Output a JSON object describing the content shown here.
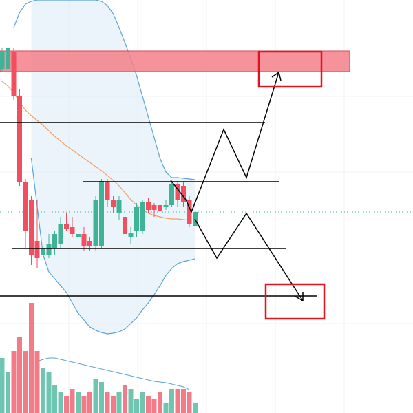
{
  "chart_data": {
    "type": "candlestick",
    "ylim": [
      0,
      600
    ],
    "volume_ylim": [
      0,
      600
    ],
    "up_color": "#3fb396",
    "down_color": "#ef4f5f",
    "open": [
      500,
      500,
      525,
      460,
      335,
      310,
      250,
      230,
      230,
      240,
      245,
      275,
      270,
      255,
      260,
      250,
      243,
      243,
      335,
      310,
      290,
      285,
      255,
      265,
      265,
      307,
      302,
      302,
      300,
      302,
      332,
      330,
      310,
      272
    ],
    "high": [
      530,
      535,
      530,
      470,
      340,
      315,
      310,
      285,
      260,
      265,
      285,
      290,
      285,
      275,
      270,
      255,
      315,
      340,
      340,
      315,
      315,
      290,
      270,
      305,
      310,
      312,
      305,
      306,
      310,
      335,
      337,
      335,
      315,
      295
    ],
    "low": [
      495,
      495,
      455,
      330,
      240,
      215,
      210,
      200,
      225,
      230,
      240,
      265,
      255,
      250,
      235,
      235,
      235,
      240,
      300,
      290,
      280,
      240,
      245,
      255,
      260,
      290,
      285,
      280,
      295,
      300,
      300,
      300,
      270,
      268
    ],
    "close": [
      525,
      530,
      460,
      335,
      265,
      230,
      225,
      240,
      245,
      260,
      275,
      268,
      260,
      260,
      243,
      243,
      310,
      337,
      310,
      300,
      310,
      260,
      262,
      300,
      307,
      295,
      295,
      294,
      302,
      332,
      310,
      307,
      275,
      292
    ],
    "volume": [
      80,
      60,
      90,
      110,
      90,
      160,
      90,
      65,
      60,
      40,
      30,
      25,
      35,
      30,
      25,
      30,
      50,
      45,
      30,
      25,
      30,
      40,
      35,
      20,
      30,
      25,
      20,
      30,
      15,
      35,
      35,
      35,
      30,
      15
    ],
    "volume_ma": [
      null,
      null,
      null,
      null,
      null,
      null,
      75,
      78,
      80,
      80,
      78,
      76,
      74,
      72,
      70,
      68,
      66,
      64,
      62,
      60,
      58,
      56,
      54,
      52,
      50,
      48,
      46,
      45,
      44,
      42,
      40,
      38,
      34,
      null
    ],
    "lines": [
      {
        "name": "upper",
        "color": "#5aa3d6",
        "values": [
          null,
          null,
          560,
          582,
          594,
          598,
          600,
          600,
          600,
          600,
          600,
          600,
          600,
          600,
          600,
          600,
          600,
          598,
          592,
          580,
          560,
          538,
          515,
          490,
          460,
          430,
          400,
          370,
          350,
          342,
          342,
          341,
          340,
          339
        ]
      },
      {
        "name": "lower",
        "color": "#5aa3d6",
        "values": [
          null,
          null,
          null,
          null,
          null,
          370,
          300,
          230,
          205,
          195,
          185,
          175,
          160,
          145,
          135,
          125,
          120,
          117,
          115,
          116,
          118,
          122,
          130,
          138,
          150,
          160,
          172,
          185,
          200,
          210,
          217,
          220,
          222,
          224
        ]
      },
      {
        "name": "basis",
        "color": "#f0a066",
        "values": [
          482,
          475,
          465,
          452,
          440,
          432,
          425,
          418,
          410,
          402,
          395,
          388,
          382,
          376,
          370,
          364,
          358,
          352,
          345,
          338,
          330,
          320,
          310,
          302,
          295,
          290,
          287,
          285,
          283,
          282,
          282,
          281,
          280,
          null
        ]
      }
    ]
  }
}
